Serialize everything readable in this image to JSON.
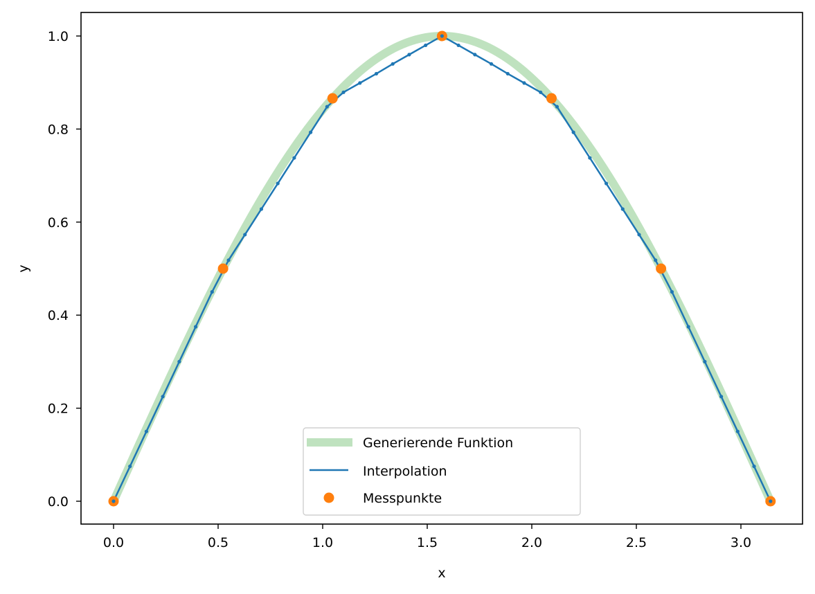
{
  "chart_data": {
    "type": "line",
    "title": "",
    "xlabel": "x",
    "ylabel": "y",
    "xlim": [
      -0.157,
      3.299
    ],
    "ylim": [
      -0.05,
      1.05
    ],
    "grid": false,
    "legend_position": "lower center",
    "x_ticks": [
      0.0,
      0.5,
      1.0,
      1.5,
      2.0,
      2.5,
      3.0
    ],
    "x_tick_labels": [
      "0.0",
      "0.5",
      "1.0",
      "1.5",
      "2.0",
      "2.5",
      "3.0"
    ],
    "y_ticks": [
      0.0,
      0.2,
      0.4,
      0.6,
      0.8,
      1.0
    ],
    "y_tick_labels": [
      "0.0",
      "0.2",
      "0.4",
      "0.6",
      "0.8",
      "1.0"
    ],
    "series": [
      {
        "name": "Generierende Funktion",
        "kind": "line",
        "color": "#2ca02c",
        "opacity": 0.3,
        "linewidth": 12,
        "function": "sin(x)",
        "x_range": [
          0,
          3.14159
        ]
      },
      {
        "name": "Interpolation",
        "kind": "line-with-markers",
        "color": "#1f77b4",
        "linewidth": 2.5,
        "x_step": 0.07854,
        "x_start": 0,
        "values": [
          0,
          0.075,
          0.15,
          0.225,
          0.3,
          0.375,
          0.45,
          0.518,
          0.573,
          0.628,
          0.683,
          0.738,
          0.793,
          0.848,
          0.879,
          0.899,
          0.919,
          0.94,
          0.96,
          0.98,
          1.0,
          0.98,
          0.96,
          0.94,
          0.919,
          0.899,
          0.879,
          0.848,
          0.793,
          0.738,
          0.683,
          0.628,
          0.573,
          0.518,
          0.45,
          0.375,
          0.3,
          0.225,
          0.15,
          0.075,
          0
        ]
      },
      {
        "name": "Messpunkte",
        "kind": "scatter",
        "color": "#ff7f0e",
        "x": [
          0,
          0.5236,
          1.0472,
          1.5708,
          2.0944,
          2.618,
          3.1416
        ],
        "y": [
          0,
          0.5,
          0.866,
          1.0,
          0.866,
          0.5,
          0
        ]
      }
    ]
  },
  "legend": {
    "items": [
      {
        "label": "Generierende Funktion"
      },
      {
        "label": "Interpolation"
      },
      {
        "label": "Messpunkte"
      }
    ]
  }
}
